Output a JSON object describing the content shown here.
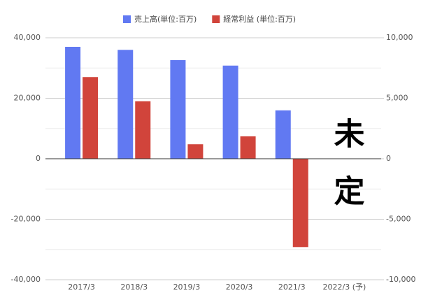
{
  "chart_data": {
    "type": "bar",
    "categories": [
      "2017/3",
      "2018/3",
      "2019/3",
      "2020/3",
      "2021/3",
      "2022/3 (予)"
    ],
    "series": [
      {
        "name": "売上高(単位:百万)",
        "color": "#6179f2",
        "values": [
          37000,
          36000,
          32600,
          30800,
          16000,
          null
        ]
      },
      {
        "name": "経常利益 (単位:百万)",
        "color": "#d1443b",
        "axis": "y2",
        "values": [
          6750,
          4750,
          1200,
          1850,
          -7300,
          null
        ]
      }
    ],
    "ylim": [
      -40000,
      40000
    ],
    "yticks": [
      {
        "value": -40000,
        "label": "-40,000"
      },
      {
        "value": -20000,
        "label": "-20,000"
      },
      0,
      {
        "value": 20000,
        "label": "20,000"
      },
      {
        "value": 40000,
        "label": "40,000"
      }
    ],
    "y_minor_ticks": [
      -30000,
      -10000,
      10000,
      30000
    ],
    "y2lim": [
      -10000,
      10000
    ],
    "y2ticks": [
      {
        "value": -10000,
        "label": "-10,000"
      },
      {
        "value": -5000,
        "label": "-5,000"
      },
      0,
      {
        "value": 5000,
        "label": "5,000"
      },
      {
        "value": 10000,
        "label": "10,000"
      }
    ],
    "annotation": "未定",
    "grid": true,
    "legend": "top"
  }
}
